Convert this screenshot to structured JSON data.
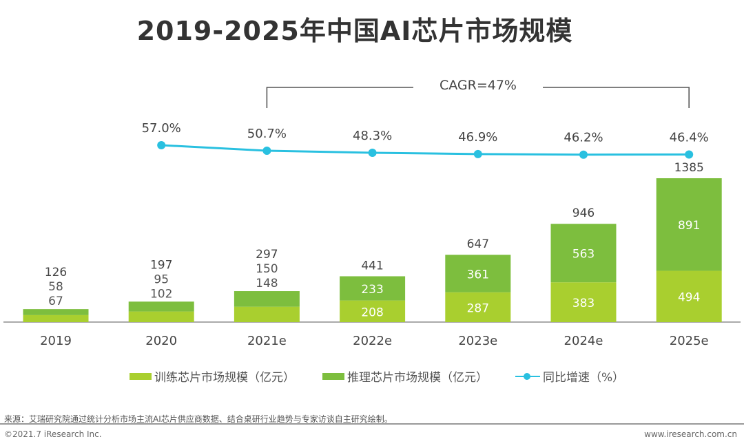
{
  "chart_data": {
    "type": "bar",
    "title": "2019-2025年中国AI芯片市场规模",
    "categories": [
      "2019",
      "2020",
      "2021e",
      "2022e",
      "2023e",
      "2024e",
      "2025e"
    ],
    "series": [
      {
        "name": "训练芯片市场规模（亿元）",
        "type": "bar",
        "stack": "total",
        "color": "#a9cf2f",
        "values": [
          67,
          102,
          148,
          208,
          287,
          383,
          494
        ]
      },
      {
        "name": "推理芯片市场规模（亿元）",
        "type": "bar",
        "stack": "total",
        "color": "#7dbe3e",
        "values": [
          58,
          95,
          150,
          233,
          361,
          563,
          891
        ]
      },
      {
        "name": "同比增速（%）",
        "type": "line",
        "color": "#29c0e0",
        "values": [
          null,
          57.0,
          50.7,
          48.3,
          46.9,
          46.2,
          46.4
        ],
        "labels": [
          "",
          "57.0%",
          "50.7%",
          "48.3%",
          "46.9%",
          "46.2%",
          "46.4%"
        ]
      }
    ],
    "totals": [
      126,
      197,
      297,
      441,
      647,
      946,
      1385
    ],
    "annotation": "CAGR=47%",
    "grid": false,
    "legend": "bottom"
  },
  "footer": {
    "source": "来源：艾瑞研究院通过统计分析市场主流AI芯片供应商数据、结合桌研行业趋势与专家访谈自主研究绘制。",
    "copyright": "©2021.7 iResearch Inc.",
    "website": "www.iresearch.com.cn"
  }
}
